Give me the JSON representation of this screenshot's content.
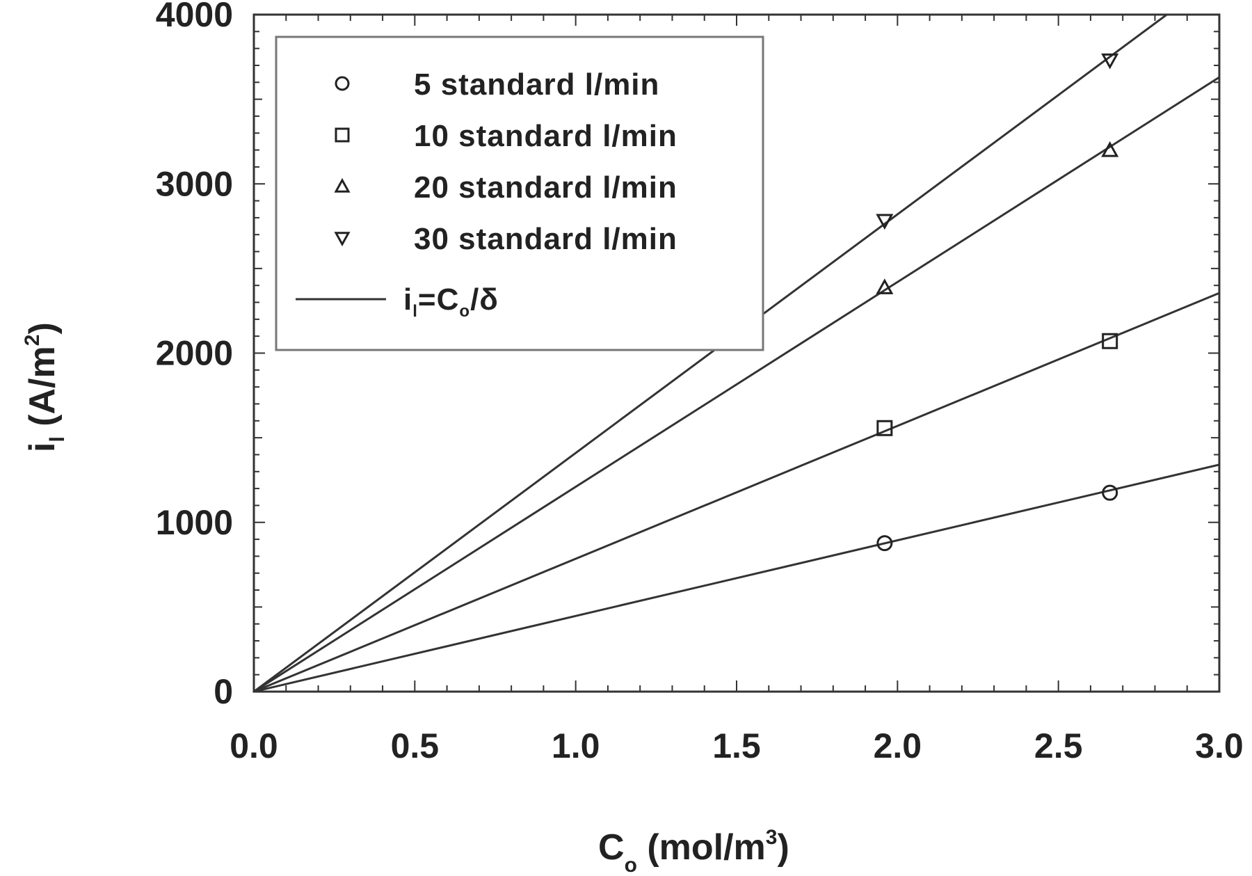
{
  "chart_data": {
    "type": "scatter",
    "title": "",
    "xlabel": "C_o (mol/m^3)",
    "ylabel": "i_l (A/m^2)",
    "xlim": [
      0.0,
      3.0
    ],
    "ylim": [
      0,
      4000
    ],
    "x_ticks": [
      "0.0",
      "0.5",
      "1.0",
      "1.5",
      "2.0",
      "2.5",
      "3.0"
    ],
    "y_ticks": [
      "0",
      "1000",
      "2000",
      "3000",
      "4000"
    ],
    "grid": false,
    "legend_position": "upper left",
    "series": [
      {
        "name": "5 standard l/min",
        "marker": "circle",
        "x": [
          1.96,
          2.66
        ],
        "y": [
          877,
          1175
        ],
        "fit_slope": 447
      },
      {
        "name": "10 standard l/min",
        "marker": "square",
        "x": [
          1.96,
          2.66
        ],
        "y": [
          1557,
          2071
        ],
        "fit_slope": 785
      },
      {
        "name": "20 standard l/min",
        "marker": "triangle-up",
        "x": [
          1.96,
          2.66
        ],
        "y": [
          2387,
          3198
        ],
        "fit_slope": 1210
      },
      {
        "name": "30 standard l/min",
        "marker": "triangle-down",
        "x": [
          1.96,
          2.66
        ],
        "y": [
          2783,
          3731
        ],
        "fit_slope": 1410
      }
    ],
    "fit_line_label": "i_l=C_o/δ"
  },
  "axes": {
    "xlabel_main": "C",
    "xlabel_sub": "o",
    "xlabel_rest": " (mol/m",
    "xlabel_sup": "3",
    "xlabel_close": ")",
    "ylabel_main": "i",
    "ylabel_sub": "l",
    "ylabel_rest": " (A/m",
    "ylabel_sup": "2",
    "ylabel_close": ")"
  },
  "legend": {
    "items": [
      {
        "label": "5 standard l/min"
      },
      {
        "label": "10 standard l/min"
      },
      {
        "label": "20 standard l/min"
      },
      {
        "label": "30 standard l/min"
      }
    ],
    "line_label_i": "i",
    "line_label_l": "l",
    "line_label_eq": "=C",
    "line_label_o": "o",
    "line_label_delta": "/δ"
  }
}
